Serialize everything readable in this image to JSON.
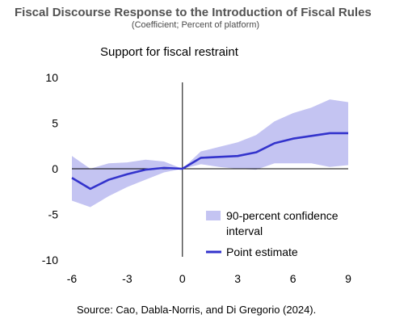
{
  "title": "Fiscal Discourse Response to the Introduction of Fiscal Rules",
  "subtitle": "(Coefficient; Percent of platform)",
  "source": "Source: Cao, Dabla-Norris, and Di Gregorio (2024).",
  "chart_data": {
    "type": "line",
    "title": "Support for fiscal restraint",
    "xlabel": "",
    "ylabel": "",
    "xlim": [
      -6,
      9
    ],
    "ylim": [
      -10,
      10
    ],
    "x_ticks": [
      -6,
      -3,
      0,
      3,
      6,
      9
    ],
    "y_ticks": [
      10,
      5,
      0,
      -5,
      -10
    ],
    "x": [
      -6,
      -5,
      -4,
      -3,
      -2,
      -1,
      0,
      1,
      2,
      3,
      4,
      5,
      6,
      7,
      8,
      9
    ],
    "series": [
      {
        "name": "Point estimate",
        "values": [
          -1.0,
          -2.2,
          -1.2,
          -0.6,
          -0.1,
          0.1,
          0.0,
          1.2,
          1.3,
          1.4,
          1.8,
          2.8,
          3.3,
          3.6,
          3.9,
          3.9
        ],
        "color": "#3333cc"
      }
    ],
    "confidence_band": {
      "name": "90-percent confidence interval",
      "lower": [
        -3.5,
        -4.2,
        -3.0,
        -2.0,
        -1.2,
        -0.4,
        0.0,
        0.5,
        0.2,
        0.0,
        -0.1,
        0.6,
        0.6,
        0.6,
        0.2,
        0.4
      ],
      "upper": [
        1.4,
        0.0,
        0.6,
        0.7,
        1.0,
        0.8,
        0.0,
        1.9,
        2.4,
        2.9,
        3.7,
        5.2,
        6.1,
        6.7,
        7.6,
        7.3
      ],
      "color": "#c4c4f2"
    },
    "legend": {
      "position": "bottom-right",
      "entries": [
        {
          "label_line1": "90-percent confidence",
          "label_line2": "interval",
          "kind": "band"
        },
        {
          "label": "Point estimate",
          "kind": "line"
        }
      ]
    },
    "grid": false
  }
}
